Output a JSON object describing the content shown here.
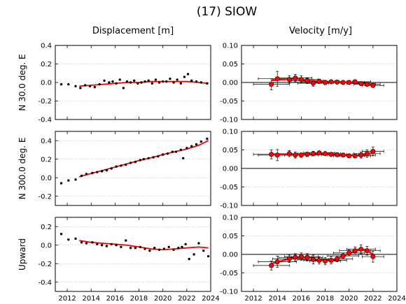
{
  "title": "(17) SIOW",
  "column_titles": [
    "Displacement [m]",
    "Velocity [m/y]"
  ],
  "row_labels": [
    "N  30.0 deg. E",
    "N 300.0 deg. E",
    "Upward"
  ],
  "colors": {
    "points": "#000000",
    "fit": "#ff0000",
    "velocity_marker": "#ff0000",
    "grid": "#999999"
  },
  "chart_data": [
    {
      "type": "scatter",
      "panel": "displacement-n30",
      "xlim": [
        2011,
        2024
      ],
      "ylim": [
        -0.4,
        0.4
      ],
      "xticks": [
        2012,
        2014,
        2016,
        2018,
        2020,
        2022,
        2024
      ],
      "yticks": [
        -0.4,
        -0.2,
        0.0,
        0.2,
        0.4
      ],
      "ytick_labels": [
        "-0.4",
        "-0.2",
        "0.0",
        "0.2",
        "0.4"
      ],
      "grid": "dotted-horizontal",
      "show_xtick_labels": false,
      "x": [
        2011.5,
        2012.1,
        2012.7,
        2013.1,
        2013.5,
        2013.9,
        2014.3,
        2014.7,
        2015.1,
        2015.5,
        2015.8,
        2016.1,
        2016.4,
        2016.7,
        2017.0,
        2017.3,
        2017.6,
        2017.9,
        2018.2,
        2018.5,
        2018.8,
        2019.1,
        2019.4,
        2019.7,
        2020.0,
        2020.3,
        2020.6,
        2020.9,
        2021.2,
        2021.5,
        2021.8,
        2022.1,
        2022.4,
        2022.8,
        2023.2,
        2023.7
      ],
      "y": [
        -0.02,
        -0.02,
        -0.04,
        -0.06,
        -0.03,
        -0.04,
        -0.05,
        -0.02,
        0.02,
        0.0,
        0.01,
        -0.01,
        0.03,
        -0.06,
        0.01,
        0.0,
        0.02,
        -0.01,
        0.0,
        0.01,
        0.02,
        -0.01,
        0.03,
        0.0,
        0.01,
        0.01,
        0.04,
        0.0,
        0.03,
        -0.01,
        0.06,
        0.09,
        0.02,
        0.01,
        0.0,
        -0.01
      ],
      "fit_x": [
        2013.0,
        2014.0,
        2015.0,
        2016.0,
        2017.0,
        2018.0,
        2019.0,
        2020.0,
        2021.0,
        2022.0,
        2023.0,
        2023.8
      ],
      "fit_y": [
        -0.04,
        -0.03,
        -0.02,
        -0.01,
        0.0,
        0.0,
        0.01,
        0.01,
        0.01,
        0.01,
        0.0,
        -0.01
      ]
    },
    {
      "type": "scatter",
      "panel": "velocity-n30",
      "xlim": [
        2011,
        2024
      ],
      "ylim": [
        -0.1,
        0.1
      ],
      "xticks": [
        2012,
        2014,
        2016,
        2018,
        2020,
        2022,
        2024
      ],
      "yticks": [
        -0.1,
        -0.05,
        0.0,
        0.05,
        0.1
      ],
      "ytick_labels": [
        "-0.10",
        "-0.05",
        "0.00",
        "0.05",
        "0.10"
      ],
      "grid": "dotted-horizontal",
      "show_xtick_labels": false,
      "zero_line": true,
      "x": [
        2013.5,
        2014.0,
        2015.0,
        2015.5,
        2016.0,
        2016.5,
        2017.0,
        2017.5,
        2018.0,
        2018.5,
        2019.0,
        2019.5,
        2020.0,
        2020.5,
        2021.0,
        2021.5,
        2022.0
      ],
      "y": [
        -0.005,
        0.01,
        0.008,
        0.012,
        0.008,
        0.005,
        -0.002,
        0.003,
        0.0,
        0.002,
        0.001,
        0.0,
        0.0,
        0.002,
        -0.003,
        -0.005,
        -0.008
      ],
      "xerr": [
        1.5,
        1.6,
        1.4,
        1.4,
        1.4,
        1.3,
        1.3,
        1.3,
        1.3,
        1.3,
        1.3,
        1.3,
        1.3,
        1.3,
        1.2,
        1.1,
        0.9
      ],
      "yerr": [
        0.015,
        0.02,
        0.01,
        0.01,
        0.01,
        0.008,
        0.008,
        0.006,
        0.006,
        0.005,
        0.005,
        0.005,
        0.005,
        0.005,
        0.005,
        0.005,
        0.005
      ],
      "fit_x": [
        2013.5,
        2014.5,
        2015.5,
        2016.5,
        2017.5,
        2018.5,
        2019.5,
        2020.5,
        2021.5,
        2022.0
      ],
      "fit_y": [
        0.005,
        0.008,
        0.01,
        0.006,
        0.003,
        0.002,
        0.001,
        0.0,
        -0.004,
        -0.006
      ]
    },
    {
      "type": "scatter",
      "panel": "displacement-n300",
      "xlim": [
        2011,
        2024
      ],
      "ylim": [
        -0.3,
        0.5
      ],
      "xticks": [
        2012,
        2014,
        2016,
        2018,
        2020,
        2022,
        2024
      ],
      "yticks": [
        -0.2,
        0.0,
        0.2,
        0.4
      ],
      "ytick_labels": [
        "-0.2",
        "0.0",
        "0.2",
        "0.4"
      ],
      "grid": "dotted-horizontal",
      "show_xtick_labels": false,
      "x": [
        2011.5,
        2012.1,
        2012.7,
        2013.2,
        2013.6,
        2014.1,
        2014.5,
        2014.9,
        2015.3,
        2015.7,
        2016.1,
        2016.5,
        2016.9,
        2017.3,
        2017.7,
        2018.1,
        2018.4,
        2018.8,
        2019.2,
        2019.6,
        2020.0,
        2020.4,
        2020.8,
        2021.1,
        2021.5,
        2021.7,
        2022.0,
        2022.4,
        2022.8,
        2023.2,
        2023.7
      ],
      "y": [
        -0.06,
        -0.03,
        -0.02,
        0.02,
        0.04,
        0.05,
        0.06,
        0.07,
        0.08,
        0.1,
        0.12,
        0.13,
        0.14,
        0.16,
        0.17,
        0.19,
        0.2,
        0.21,
        0.22,
        0.23,
        0.25,
        0.26,
        0.28,
        0.28,
        0.3,
        0.21,
        0.32,
        0.34,
        0.36,
        0.39,
        0.42
      ],
      "fit_x": [
        2013.0,
        2014.0,
        2015.0,
        2016.0,
        2017.0,
        2018.0,
        2019.0,
        2020.0,
        2021.0,
        2022.0,
        2023.0,
        2023.8
      ],
      "fit_y": [
        0.01,
        0.045,
        0.08,
        0.115,
        0.15,
        0.185,
        0.215,
        0.25,
        0.28,
        0.31,
        0.35,
        0.4
      ]
    },
    {
      "type": "scatter",
      "panel": "velocity-n300",
      "xlim": [
        2011,
        2024
      ],
      "ylim": [
        -0.1,
        0.1
      ],
      "xticks": [
        2012,
        2014,
        2016,
        2018,
        2020,
        2022,
        2024
      ],
      "yticks": [
        -0.1,
        -0.05,
        0.0,
        0.05,
        0.1
      ],
      "ytick_labels": [
        "-0.10",
        "-0.05",
        "0.00",
        "0.05",
        "0.10"
      ],
      "grid": "dotted-horizontal",
      "show_xtick_labels": false,
      "zero_line": true,
      "x": [
        2013.5,
        2014.0,
        2015.0,
        2015.5,
        2016.0,
        2016.5,
        2017.0,
        2017.5,
        2018.0,
        2018.5,
        2019.0,
        2019.5,
        2020.0,
        2020.5,
        2021.0,
        2021.5,
        2022.0
      ],
      "y": [
        0.038,
        0.036,
        0.04,
        0.036,
        0.036,
        0.038,
        0.04,
        0.042,
        0.04,
        0.038,
        0.037,
        0.036,
        0.034,
        0.034,
        0.036,
        0.04,
        0.046
      ],
      "xerr": [
        1.5,
        1.6,
        1.4,
        1.4,
        1.4,
        1.3,
        1.3,
        1.3,
        1.3,
        1.3,
        1.3,
        1.3,
        1.3,
        1.3,
        1.2,
        1.1,
        0.9
      ],
      "yerr": [
        0.012,
        0.015,
        0.008,
        0.008,
        0.006,
        0.006,
        0.006,
        0.005,
        0.005,
        0.005,
        0.005,
        0.005,
        0.005,
        0.006,
        0.008,
        0.01,
        0.012
      ],
      "fit_x": [
        2013.5,
        2014.5,
        2015.5,
        2016.5,
        2017.5,
        2018.5,
        2019.5,
        2020.5,
        2021.5,
        2022.0
      ],
      "fit_y": [
        0.037,
        0.038,
        0.037,
        0.038,
        0.04,
        0.039,
        0.037,
        0.035,
        0.039,
        0.043
      ]
    },
    {
      "type": "scatter",
      "panel": "displacement-up",
      "xlim": [
        2011,
        2024
      ],
      "ylim": [
        -0.5,
        0.3
      ],
      "xticks": [
        2012,
        2014,
        2016,
        2018,
        2020,
        2022,
        2024
      ],
      "xtick_labels": [
        "2012",
        "2014",
        "2016",
        "2018",
        "2020",
        "2022",
        "2024"
      ],
      "yticks": [
        -0.4,
        -0.2,
        0.0,
        0.2
      ],
      "ytick_labels": [
        "-0.4",
        "-0.2",
        "0.0",
        "0.2"
      ],
      "grid": "dotted-horizontal",
      "show_xtick_labels": true,
      "x": [
        2011.5,
        2012.1,
        2012.7,
        2013.2,
        2013.6,
        2014.1,
        2014.5,
        2014.9,
        2015.3,
        2015.7,
        2016.1,
        2016.5,
        2016.9,
        2017.3,
        2017.7,
        2018.1,
        2018.5,
        2018.9,
        2019.3,
        2019.7,
        2020.1,
        2020.5,
        2020.9,
        2021.3,
        2021.6,
        2021.9,
        2022.2,
        2022.6,
        2023.0,
        2023.4,
        2023.8
      ],
      "y": [
        0.12,
        0.06,
        0.07,
        0.03,
        0.02,
        0.03,
        0.01,
        0.0,
        -0.01,
        0.01,
        0.0,
        -0.02,
        0.05,
        -0.03,
        -0.03,
        -0.02,
        -0.04,
        -0.06,
        -0.03,
        -0.05,
        -0.04,
        -0.02,
        -0.05,
        -0.03,
        -0.02,
        0.01,
        -0.15,
        -0.1,
        0.02,
        -0.06,
        -0.12
      ],
      "fit_x": [
        2013.0,
        2014.0,
        2015.0,
        2016.0,
        2017.0,
        2018.0,
        2019.0,
        2020.0,
        2021.0,
        2022.0,
        2023.0,
        2023.8
      ],
      "fit_y": [
        0.05,
        0.03,
        0.02,
        0.01,
        0.0,
        -0.02,
        -0.04,
        -0.05,
        -0.04,
        -0.03,
        -0.02,
        -0.03
      ]
    },
    {
      "type": "scatter",
      "panel": "velocity-up",
      "xlim": [
        2011,
        2024
      ],
      "ylim": [
        -0.1,
        0.1
      ],
      "xticks": [
        2012,
        2014,
        2016,
        2018,
        2020,
        2022,
        2024
      ],
      "xtick_labels": [
        "2012",
        "2014",
        "2016",
        "2018",
        "2020",
        "2022",
        "2024"
      ],
      "yticks": [
        -0.1,
        -0.05,
        0.0,
        0.05,
        0.1
      ],
      "ytick_labels": [
        "-0.10",
        "-0.05",
        "0.00",
        "0.05",
        "0.10"
      ],
      "grid": "dotted-horizontal",
      "show_xtick_labels": true,
      "zero_line": true,
      "x": [
        2013.5,
        2014.0,
        2015.0,
        2015.5,
        2016.0,
        2016.5,
        2017.0,
        2017.5,
        2018.0,
        2018.5,
        2019.0,
        2019.5,
        2020.0,
        2020.5,
        2021.0,
        2021.5,
        2022.0
      ],
      "y": [
        -0.03,
        -0.02,
        -0.012,
        -0.008,
        -0.006,
        -0.008,
        -0.014,
        -0.016,
        -0.018,
        -0.016,
        -0.012,
        -0.004,
        0.004,
        0.01,
        0.014,
        0.01,
        -0.006
      ],
      "xerr": [
        1.5,
        1.6,
        1.4,
        1.4,
        1.4,
        1.3,
        1.3,
        1.3,
        1.3,
        1.3,
        1.3,
        1.3,
        1.3,
        1.3,
        1.2,
        1.1,
        0.9
      ],
      "yerr": [
        0.012,
        0.015,
        0.01,
        0.01,
        0.01,
        0.01,
        0.012,
        0.01,
        0.01,
        0.01,
        0.008,
        0.008,
        0.008,
        0.01,
        0.012,
        0.012,
        0.015
      ],
      "fit_x": [
        2013.5,
        2014.5,
        2015.5,
        2016.5,
        2017.5,
        2018.5,
        2019.5,
        2020.0,
        2020.5,
        2021.0,
        2021.5,
        2022.0
      ],
      "fit_y": [
        -0.025,
        -0.016,
        -0.009,
        -0.008,
        -0.015,
        -0.016,
        -0.005,
        0.003,
        0.009,
        0.012,
        0.01,
        0.0
      ]
    }
  ]
}
